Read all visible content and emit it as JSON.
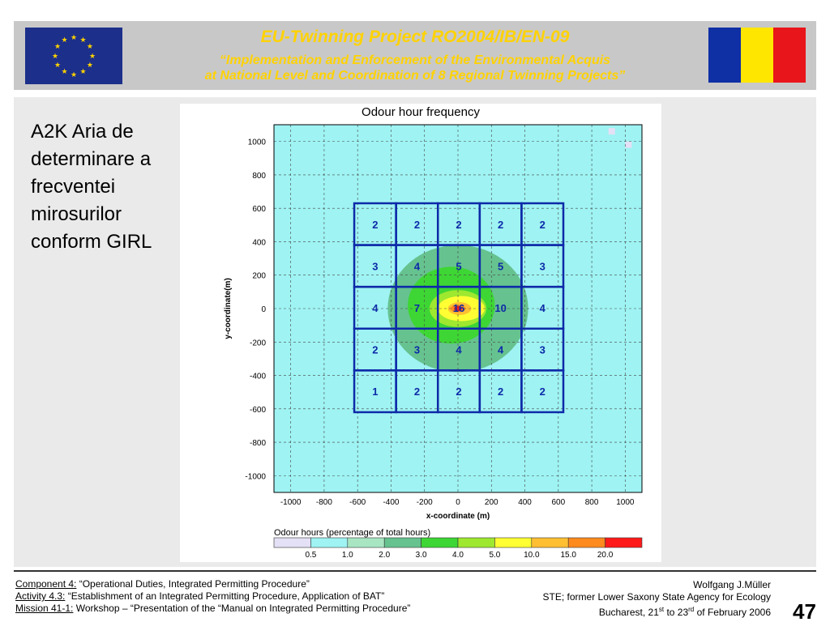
{
  "header": {
    "title": "EU-Twinning  Project  RO2004/IB/EN-09",
    "subtitle_line1": "“Implementation and Enforcement of the Environmental Acquis",
    "subtitle_line2": "at National Level and Coordination of 8 Regional Twinning Projects”",
    "colors": {
      "bar": "#c8c8c8",
      "title": "#ffd200",
      "eu_blue": "#1c2f8a",
      "ro_blue": "#0f2fa5",
      "ro_yellow": "#ffe600",
      "ro_red": "#e8151b"
    }
  },
  "caption": [
    "A2K Aria de",
    "determinare a",
    "frecventei",
    "mirosurilor",
    "conform GIRL"
  ],
  "footer": {
    "component_label": "Component 4:",
    "component_text": " “Operational Duties, Integrated Permitting Procedure”",
    "activity_label": "Activity 4.3:",
    "activity_text": " “Establishment of an Integrated Permitting Procedure, Application of BAT”",
    "mission_label": "Mission 41-1:",
    "mission_text": " Workshop – “Presentation of the “Manual on Integrated Permitting Procedure”",
    "author": "Wolfgang J.Müller",
    "agency": "STE; former Lower Saxony State Agency for Ecology",
    "place_prefix": "Bucharest, 21",
    "place_sup1": "st",
    "place_mid": " to 23",
    "place_sup2": "rd",
    "place_suffix": " of February 2006",
    "page_number": "47"
  },
  "chart_data": {
    "type": "heatmap",
    "title": "Odour hour frequency",
    "xlabel": "x-coordinate (m)",
    "ylabel": "y-coordinate(m)",
    "xlim": [
      -1100,
      1100
    ],
    "ylim": [
      -1100,
      1100
    ],
    "x_ticks": [
      -1000,
      -800,
      -600,
      -400,
      -200,
      0,
      200,
      400,
      600,
      800,
      1000
    ],
    "y_ticks": [
      1000,
      800,
      600,
      400,
      200,
      0,
      -200,
      -400,
      -600,
      -800,
      -1000
    ],
    "grid": true,
    "legend_title": "Odour hours (percentage of total hours)",
    "legend_breaks": [
      "0.5",
      "1.0",
      "2.0",
      "3.0",
      "4.0",
      "5.0",
      "10.0",
      "15.0",
      "20.0"
    ],
    "legend_colors": [
      "#e4e0f5",
      "#9ff3f3",
      "#a8e6c2",
      "#66c28f",
      "#3ed634",
      "#9ee830",
      "#ffff33",
      "#ffbf33",
      "#ff8a1e",
      "#ff1a1a"
    ],
    "background_color": "#6fc79a",
    "evaluation_grid": {
      "x_edges": [
        -620,
        -370,
        -120,
        130,
        380,
        630
      ],
      "y_edges": [
        630,
        380,
        130,
        -120,
        -370,
        -620
      ],
      "color": "#0d2aa8",
      "values": [
        [
          "2",
          "2",
          "2",
          "2",
          "2"
        ],
        [
          "3",
          "4",
          "5",
          "5",
          "3"
        ],
        [
          "4",
          "7",
          "16",
          "10",
          "4"
        ],
        [
          "2",
          "3",
          "4",
          "4",
          "3"
        ],
        [
          "1",
          "2",
          "2",
          "2",
          "2"
        ]
      ]
    }
  }
}
